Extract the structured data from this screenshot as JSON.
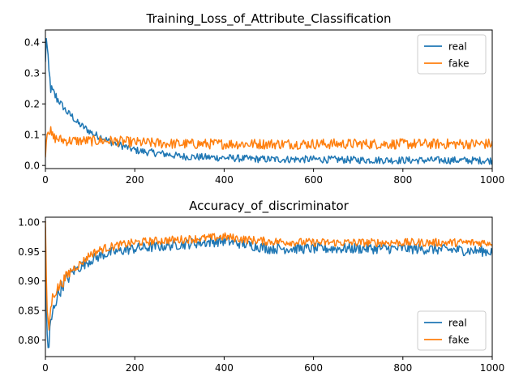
{
  "chart_data": [
    {
      "type": "line",
      "title": "Training_Loss_of_Attribute_Classification",
      "xlim": [
        0,
        1000
      ],
      "ylim": [
        -0.01,
        0.44
      ],
      "xticks": [
        0,
        200,
        400,
        600,
        800,
        1000
      ],
      "yticks": [
        0.0,
        0.1,
        0.2,
        0.3,
        0.4
      ],
      "ytick_labels": [
        "0.0",
        "0.1",
        "0.2",
        "0.3",
        "0.4"
      ],
      "legend": "top-right",
      "grid": false,
      "series": [
        {
          "name": "real",
          "color": "#1f77b4",
          "x": [
            0,
            2,
            4,
            6,
            8,
            10,
            12,
            15,
            20,
            25,
            30,
            40,
            50,
            60,
            70,
            80,
            90,
            100,
            110,
            120,
            130,
            140,
            150,
            160,
            170,
            180,
            200,
            220,
            250,
            280,
            300,
            350,
            400,
            450,
            500,
            600,
            700,
            800,
            900,
            1000
          ],
          "y": [
            0.33,
            0.42,
            0.38,
            0.34,
            0.3,
            0.28,
            0.25,
            0.24,
            0.23,
            0.22,
            0.21,
            0.19,
            0.17,
            0.16,
            0.14,
            0.13,
            0.12,
            0.11,
            0.1,
            0.095,
            0.09,
            0.08,
            0.075,
            0.07,
            0.065,
            0.06,
            0.05,
            0.045,
            0.04,
            0.035,
            0.03,
            0.027,
            0.025,
            0.022,
            0.02,
            0.02,
            0.018,
            0.017,
            0.017,
            0.016
          ]
        },
        {
          "name": "fake",
          "color": "#ff7f0e",
          "x": [
            0,
            3,
            6,
            10,
            15,
            20,
            30,
            50,
            100,
            150,
            200,
            300,
            400,
            500,
            600,
            700,
            800,
            900,
            1000
          ],
          "y": [
            0.05,
            0.1,
            0.13,
            0.11,
            0.09,
            0.09,
            0.085,
            0.08,
            0.08,
            0.08,
            0.075,
            0.07,
            0.07,
            0.07,
            0.07,
            0.07,
            0.07,
            0.07,
            0.07
          ]
        }
      ]
    },
    {
      "type": "line",
      "title": "Accuracy_of_discriminator",
      "xlim": [
        0,
        1000
      ],
      "ylim": [
        0.772,
        1.008
      ],
      "xticks": [
        0,
        200,
        400,
        600,
        800,
        1000
      ],
      "yticks": [
        0.8,
        0.85,
        0.9,
        0.95,
        1.0
      ],
      "ytick_labels": [
        "0.80",
        "0.85",
        "0.90",
        "0.95",
        "1.00"
      ],
      "legend": "bottom-right",
      "grid": false,
      "series": [
        {
          "name": "real",
          "color": "#1f77b4",
          "x": [
            0,
            2,
            5,
            8,
            10,
            15,
            20,
            30,
            40,
            50,
            60,
            80,
            100,
            130,
            160,
            200,
            250,
            300,
            350,
            400,
            450,
            500,
            600,
            700,
            800,
            900,
            1000
          ],
          "y": [
            0.99,
            0.86,
            0.79,
            0.78,
            0.82,
            0.84,
            0.86,
            0.88,
            0.895,
            0.905,
            0.915,
            0.925,
            0.935,
            0.945,
            0.95,
            0.955,
            0.958,
            0.962,
            0.965,
            0.968,
            0.962,
            0.955,
            0.955,
            0.955,
            0.955,
            0.953,
            0.95
          ]
        },
        {
          "name": "fake",
          "color": "#ff7f0e",
          "x": [
            0,
            2,
            5,
            8,
            10,
            15,
            20,
            30,
            40,
            50,
            60,
            80,
            100,
            130,
            160,
            200,
            250,
            300,
            350,
            400,
            450,
            500,
            600,
            700,
            800,
            900,
            1000
          ],
          "y": [
            1.0,
            0.9,
            0.83,
            0.82,
            0.84,
            0.87,
            0.88,
            0.89,
            0.9,
            0.91,
            0.92,
            0.93,
            0.945,
            0.955,
            0.96,
            0.965,
            0.968,
            0.97,
            0.972,
            0.975,
            0.97,
            0.967,
            0.965,
            0.965,
            0.965,
            0.965,
            0.965
          ]
        }
      ]
    }
  ]
}
